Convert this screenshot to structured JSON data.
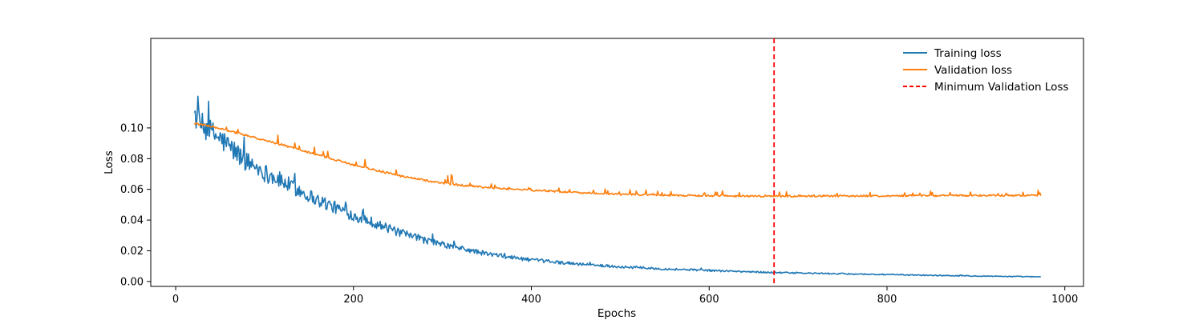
{
  "chart_data": {
    "type": "line",
    "title": "",
    "xlabel": "Epochs",
    "ylabel": "Loss",
    "xlim": [
      -28,
      1021
    ],
    "ylim": [
      -0.0032,
      0.1583
    ],
    "xticks": [
      0,
      200,
      400,
      600,
      800,
      1000
    ],
    "yticks": [
      0.0,
      0.02,
      0.04,
      0.06,
      0.08,
      0.1
    ],
    "xtick_labels": [
      "0",
      "200",
      "400",
      "600",
      "800",
      "1000"
    ],
    "ytick_labels": [
      "0.00",
      "0.02",
      "0.04",
      "0.06",
      "0.08",
      "0.10"
    ],
    "grid": false,
    "legend_position": "top-right",
    "x_start": 21,
    "x_end": 973,
    "series": [
      {
        "name": "Training loss",
        "color": "#1f77b4",
        "style": "solid",
        "points": [
          [
            21,
            0.11
          ],
          [
            25,
            0.104
          ],
          [
            30,
            0.101
          ],
          [
            40,
            0.097
          ],
          [
            50,
            0.093
          ],
          [
            60,
            0.088
          ],
          [
            70,
            0.083
          ],
          [
            80,
            0.078
          ],
          [
            90,
            0.075
          ],
          [
            100,
            0.071
          ],
          [
            120,
            0.065
          ],
          [
            140,
            0.059
          ],
          [
            160,
            0.053
          ],
          [
            180,
            0.048
          ],
          [
            200,
            0.043
          ],
          [
            220,
            0.039
          ],
          [
            250,
            0.032
          ],
          [
            280,
            0.027
          ],
          [
            300,
            0.024
          ],
          [
            350,
            0.018
          ],
          [
            400,
            0.014
          ],
          [
            450,
            0.0115
          ],
          [
            500,
            0.0095
          ],
          [
            550,
            0.0082
          ],
          [
            600,
            0.0072
          ],
          [
            650,
            0.0062
          ],
          [
            700,
            0.0055
          ],
          [
            750,
            0.005
          ],
          [
            800,
            0.0045
          ],
          [
            850,
            0.004
          ],
          [
            900,
            0.0036
          ],
          [
            950,
            0.0032
          ],
          [
            973,
            0.003
          ]
        ]
      },
      {
        "name": "Validation loss",
        "color": "#ff7f0e",
        "style": "solid",
        "points": [
          [
            21,
            0.103
          ],
          [
            40,
            0.101
          ],
          [
            60,
            0.098
          ],
          [
            80,
            0.095
          ],
          [
            100,
            0.092
          ],
          [
            120,
            0.089
          ],
          [
            150,
            0.084
          ],
          [
            200,
            0.076
          ],
          [
            250,
            0.069
          ],
          [
            300,
            0.064
          ],
          [
            350,
            0.061
          ],
          [
            400,
            0.0595
          ],
          [
            450,
            0.058
          ],
          [
            500,
            0.0568
          ],
          [
            550,
            0.0562
          ],
          [
            600,
            0.0558
          ],
          [
            650,
            0.0556
          ],
          [
            673,
            0.0555
          ],
          [
            700,
            0.0556
          ],
          [
            750,
            0.0557
          ],
          [
            800,
            0.0558
          ],
          [
            850,
            0.0559
          ],
          [
            900,
            0.056
          ],
          [
            950,
            0.0561
          ],
          [
            973,
            0.0561
          ]
        ]
      }
    ],
    "vlines": [
      {
        "name": "Minimum Validation Loss",
        "x": 673,
        "color": "#ff0000",
        "style": "dashed"
      }
    ]
  }
}
